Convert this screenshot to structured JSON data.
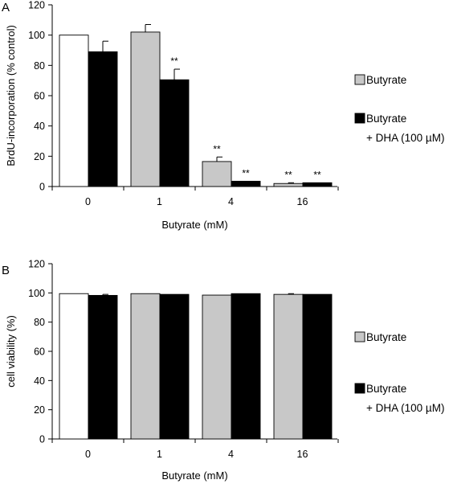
{
  "chart_data": [
    {
      "type": "bar",
      "panel_label": "A",
      "title": "",
      "xlabel": "Butyrate (mM)",
      "ylabel": "BrdU-incorporation (% control)",
      "ylim": [
        0,
        120
      ],
      "yticks": [
        0,
        20,
        40,
        60,
        80,
        100,
        120
      ],
      "categories": [
        "0",
        "1",
        "4",
        "16"
      ],
      "grid": false,
      "legend_position": "right",
      "series": [
        {
          "name": "Butyrate",
          "color": "#c8c8c8",
          "values": [
            100,
            102,
            16.5,
            2
          ],
          "errors": [
            0,
            5,
            3,
            0.5
          ],
          "significance": [
            "",
            "",
            "**",
            "**"
          ]
        },
        {
          "name": "Butyrate",
          "name_line2": "+ DHA (100 µM)",
          "color": "#000000",
          "values": [
            89,
            70.5,
            3.5,
            2.5
          ],
          "errors": [
            7,
            7,
            0,
            0
          ],
          "significance": [
            "",
            "**",
            "**",
            "**"
          ]
        }
      ],
      "control_color": "#ffffff"
    },
    {
      "type": "bar",
      "panel_label": "B",
      "title": "",
      "xlabel": "Butyrate (mM)",
      "ylabel": "cell viability (%)",
      "ylim": [
        0,
        120
      ],
      "yticks": [
        0,
        20,
        40,
        60,
        80,
        100,
        120
      ],
      "categories": [
        "0",
        "1",
        "4",
        "16"
      ],
      "grid": false,
      "legend_position": "right",
      "series": [
        {
          "name": "Butyrate",
          "color": "#c8c8c8",
          "values": [
            99.5,
            99.5,
            98.5,
            99
          ],
          "errors": [
            0,
            0,
            0,
            0.5
          ],
          "significance": [
            "",
            "",
            "",
            ""
          ]
        },
        {
          "name": "Butyrate",
          "name_line2": "+ DHA (100 µM)",
          "color": "#000000",
          "values": [
            98.3,
            99,
            99.5,
            99
          ],
          "errors": [
            0.7,
            0,
            0,
            0
          ],
          "significance": [
            "",
            "",
            "",
            ""
          ]
        }
      ],
      "control_color": "#ffffff"
    }
  ]
}
